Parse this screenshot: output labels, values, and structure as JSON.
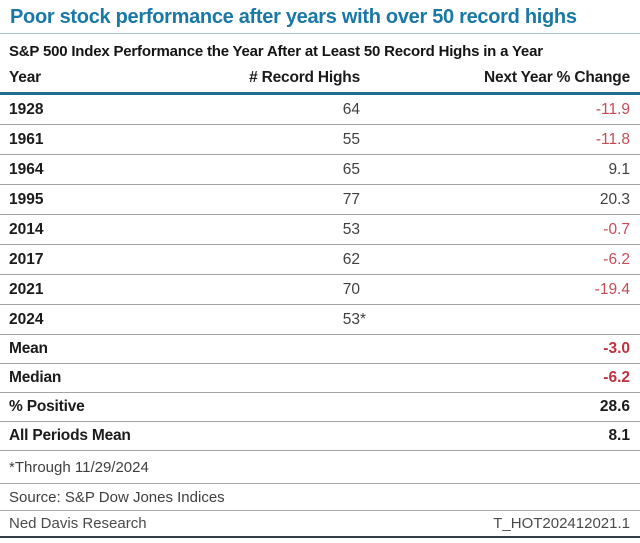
{
  "title": "Poor stock performance after years with over 50 record highs",
  "subtitle": "S&P 500 Index Performance the Year After at Least 50 Record Highs in a Year",
  "table": {
    "columns": [
      "Year",
      "# Record Highs",
      "Next Year % Change"
    ],
    "rows": [
      {
        "year": "1928",
        "highs": "64",
        "suffix": "",
        "change": "-11.9",
        "negative": true
      },
      {
        "year": "1961",
        "highs": "55",
        "suffix": "",
        "change": "-11.8",
        "negative": true
      },
      {
        "year": "1964",
        "highs": "65",
        "suffix": "",
        "change": "9.1",
        "negative": false
      },
      {
        "year": "1995",
        "highs": "77",
        "suffix": "",
        "change": "20.3",
        "negative": false
      },
      {
        "year": "2014",
        "highs": "53",
        "suffix": "",
        "change": "-0.7",
        "negative": true
      },
      {
        "year": "2017",
        "highs": "62",
        "suffix": "",
        "change": "-6.2",
        "negative": true
      },
      {
        "year": "2021",
        "highs": "70",
        "suffix": "",
        "change": "-19.4",
        "negative": true
      },
      {
        "year": "2024",
        "highs": "53",
        "suffix": "*",
        "change": "",
        "negative": false
      }
    ],
    "summary": [
      {
        "label": "Mean",
        "value": "-3.0",
        "negative": true
      },
      {
        "label": "Median",
        "value": "-6.2",
        "negative": true
      },
      {
        "label": "% Positive",
        "value": "28.6",
        "negative": false
      },
      {
        "label": "All Periods Mean",
        "value": "8.1",
        "negative": false
      }
    ]
  },
  "footnotes": [
    "*Through 11/29/2024",
    "Source: S&P Dow Jones Indices"
  ],
  "footer": {
    "left": "Ned Davis Research",
    "right": "T_HOT202412021.1"
  },
  "colors": {
    "title_blue": "#1a78a6",
    "header_rule_teal": "#1d6f8d",
    "negative_red": "#c64b57",
    "summary_negative_red": "#bf323f",
    "text_black": "#1b1b1b",
    "bottom_rule_dark": "#333d47"
  },
  "chart_data": {
    "type": "table",
    "title": "Poor stock performance after years with over 50 record highs",
    "subtitle": "S&P 500 Index Performance the Year After at Least 50 Record Highs in a Year",
    "columns": [
      "Year",
      "# Record Highs",
      "Next Year % Change"
    ],
    "rows": [
      [
        1928,
        64,
        -11.9
      ],
      [
        1961,
        55,
        -11.8
      ],
      [
        1964,
        65,
        9.1
      ],
      [
        1995,
        77,
        20.3
      ],
      [
        2014,
        53,
        -0.7
      ],
      [
        2017,
        62,
        -6.2
      ],
      [
        2021,
        70,
        -19.4
      ],
      [
        2024,
        "53*",
        null
      ]
    ],
    "summary": {
      "mean": -3.0,
      "median": -6.2,
      "pct_positive": 28.6,
      "all_periods_mean": 8.1
    },
    "note": "*Through 11/29/2024",
    "source": "S&P Dow Jones Indices",
    "provider": "Ned Davis Research",
    "chart_code": "T_HOT202412021.1"
  }
}
